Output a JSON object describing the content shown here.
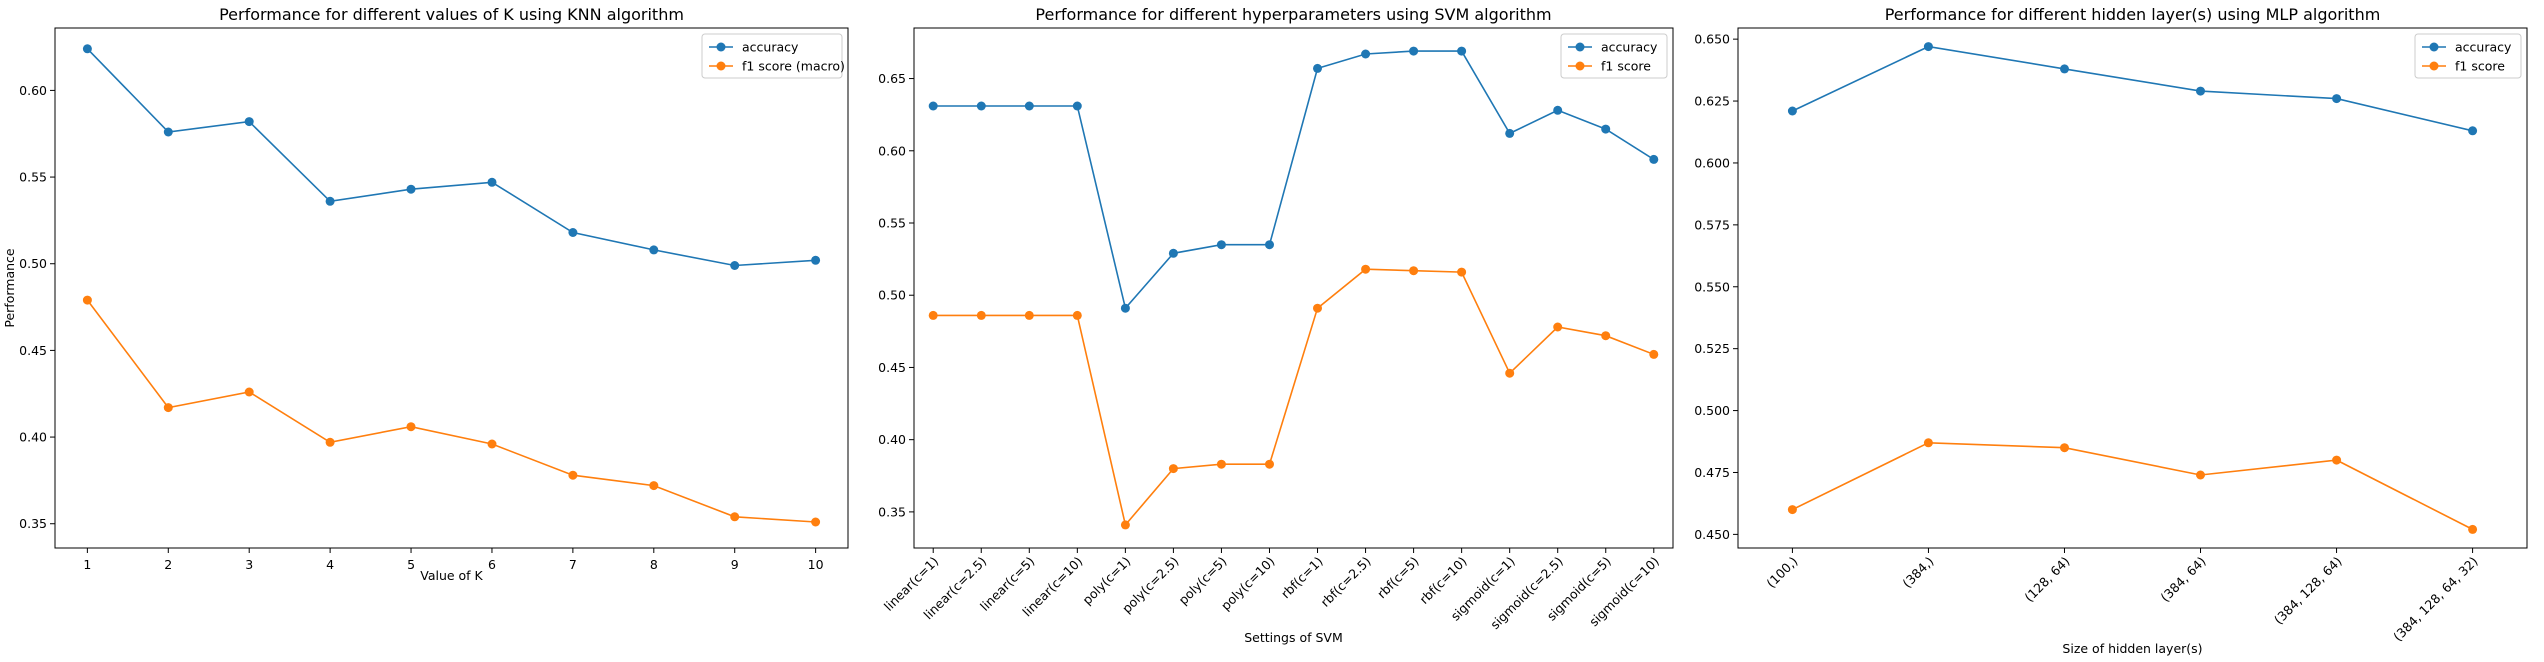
{
  "chart_data": [
    {
      "type": "line",
      "title": "Performance for different values of K using KNN algorithm",
      "xlabel": "Value of K",
      "ylabel": "Performance",
      "x": [
        1,
        2,
        3,
        4,
        5,
        6,
        7,
        8,
        9,
        10
      ],
      "xlim": [
        0.6,
        10.4
      ],
      "xticks": [
        "1",
        "2",
        "3",
        "4",
        "5",
        "6",
        "7",
        "8",
        "9",
        "10"
      ],
      "ylim": [
        0.336,
        0.636
      ],
      "yticks": [
        0.35,
        0.4,
        0.45,
        0.5,
        0.55,
        0.6
      ],
      "ytick_labels": [
        "0.35",
        "0.40",
        "0.45",
        "0.50",
        "0.55",
        "0.60"
      ],
      "xtick_rotation": 0,
      "grid": false,
      "legend_position": "top-right",
      "series": [
        {
          "name": "accuracy",
          "color": "#1f77b4",
          "values": [
            0.624,
            0.576,
            0.582,
            0.536,
            0.543,
            0.547,
            0.518,
            0.508,
            0.499,
            0.502
          ]
        },
        {
          "name": "f1 score (macro)",
          "color": "#ff7f0e",
          "values": [
            0.479,
            0.417,
            0.426,
            0.397,
            0.406,
            0.396,
            0.378,
            0.372,
            0.354,
            0.351
          ]
        }
      ]
    },
    {
      "type": "line",
      "title": "Performance for different hyperparameters using SVM algorithm",
      "xlabel": "Settings of SVM",
      "ylabel": "",
      "categories": [
        "linear(c=1)",
        "linear(c=2.5)",
        "linear(c=5)",
        "linear(c=10)",
        "poly(c=1)",
        "poly(c=2.5)",
        "poly(c=5)",
        "poly(c=10)",
        "rbf(c=1)",
        "rbf(c=2.5)",
        "rbf(c=5)",
        "rbf(c=10)",
        "sigmoid(c=1)",
        "sigmoid(c=2.5)",
        "sigmoid(c=5)",
        "sigmoid(c=10)"
      ],
      "ylim": [
        0.325,
        0.685
      ],
      "yticks": [
        0.35,
        0.4,
        0.45,
        0.5,
        0.55,
        0.6,
        0.65
      ],
      "ytick_labels": [
        "0.35",
        "0.40",
        "0.45",
        "0.50",
        "0.55",
        "0.60",
        "0.65"
      ],
      "xtick_rotation": -45,
      "grid": false,
      "legend_position": "top-right",
      "series": [
        {
          "name": "accuracy",
          "color": "#1f77b4",
          "values": [
            0.631,
            0.631,
            0.631,
            0.631,
            0.491,
            0.529,
            0.535,
            0.535,
            0.657,
            0.667,
            0.669,
            0.669,
            0.612,
            0.628,
            0.615,
            0.594
          ]
        },
        {
          "name": "f1 score",
          "color": "#ff7f0e",
          "values": [
            0.486,
            0.486,
            0.486,
            0.486,
            0.341,
            0.38,
            0.383,
            0.383,
            0.491,
            0.518,
            0.517,
            0.516,
            0.446,
            0.478,
            0.472,
            0.459
          ]
        }
      ]
    },
    {
      "type": "line",
      "title": "Performance for different hidden layer(s) using MLP algorithm",
      "xlabel": "Size of hidden layer(s)",
      "ylabel": "",
      "categories": [
        "(100,)",
        "(384,)",
        "(128, 64)",
        "(384, 64)",
        "(384, 128, 64)",
        "(384, 128, 64, 32)"
      ],
      "ylim": [
        0.4445,
        0.6545
      ],
      "yticks": [
        0.45,
        0.475,
        0.5,
        0.525,
        0.55,
        0.575,
        0.6,
        0.625,
        0.65
      ],
      "ytick_labels": [
        "0.450",
        "0.475",
        "0.500",
        "0.525",
        "0.550",
        "0.575",
        "0.600",
        "0.625",
        "0.650"
      ],
      "xtick_rotation": -45,
      "grid": false,
      "legend_position": "top-right",
      "series": [
        {
          "name": "accuracy",
          "color": "#1f77b4",
          "values": [
            0.621,
            0.647,
            0.638,
            0.629,
            0.626,
            0.613
          ]
        },
        {
          "name": "f1 score",
          "color": "#ff7f0e",
          "values": [
            0.46,
            0.487,
            0.485,
            0.474,
            0.48,
            0.452
          ]
        }
      ]
    }
  ]
}
